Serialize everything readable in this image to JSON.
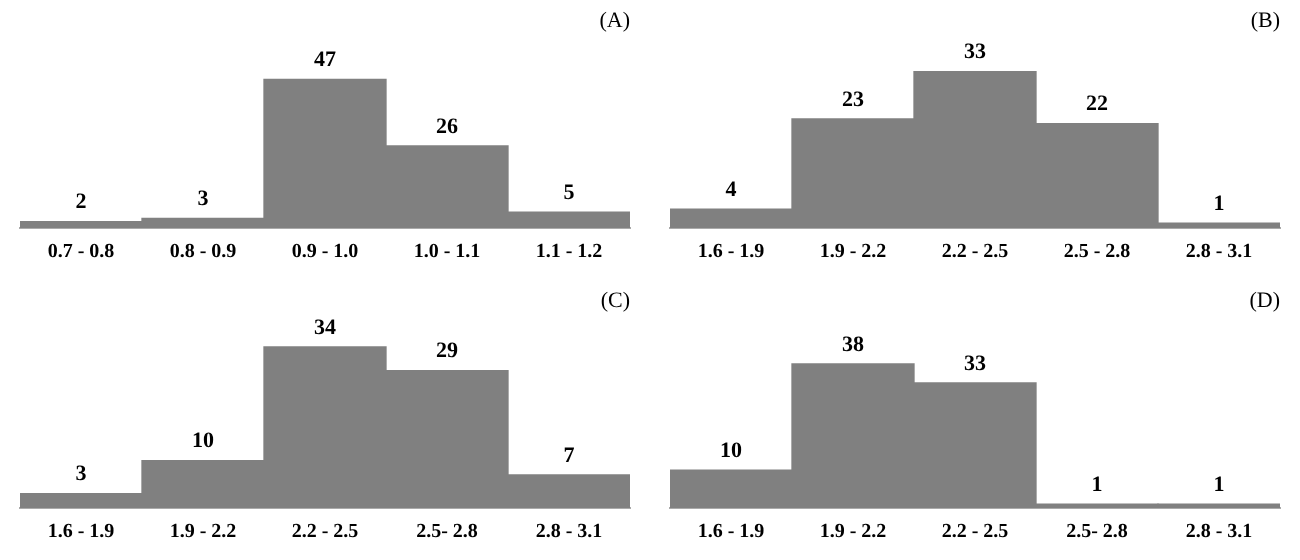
{
  "chart_data": [
    {
      "type": "bar",
      "title": "(A)",
      "categories": [
        "0.7 - 0.8",
        "0.8 - 0.9",
        "0.9 - 1.0",
        "1.0 - 1.1",
        "1.1 - 1.2"
      ],
      "values": [
        2,
        3,
        47,
        26,
        5
      ],
      "color": "#808080",
      "data_labels": true
    },
    {
      "type": "bar",
      "title": "(B)",
      "categories": [
        "1.6 - 1.9",
        "1.9 - 2.2",
        "2.2 - 2.5",
        "2.5 - 2.8",
        "2.8 - 3.1"
      ],
      "values": [
        4,
        23,
        33,
        22,
        1
      ],
      "color": "#808080",
      "data_labels": true
    },
    {
      "type": "bar",
      "title": "(C)",
      "categories": [
        "1.6 - 1.9",
        "1.9 - 2.2",
        "2.2 - 2.5",
        "2.5- 2.8",
        "2.8 - 3.1"
      ],
      "values": [
        3,
        10,
        34,
        29,
        7
      ],
      "color": "#808080",
      "data_labels": true
    },
    {
      "type": "bar",
      "title": "(D)",
      "categories": [
        "1.6 - 1.9",
        "1.9 - 2.2",
        "2.2 - 2.5",
        "2.5- 2.8",
        "2.8 - 3.1"
      ],
      "values": [
        10,
        38,
        33,
        1,
        1
      ],
      "color": "#808080",
      "data_labels": true
    }
  ]
}
